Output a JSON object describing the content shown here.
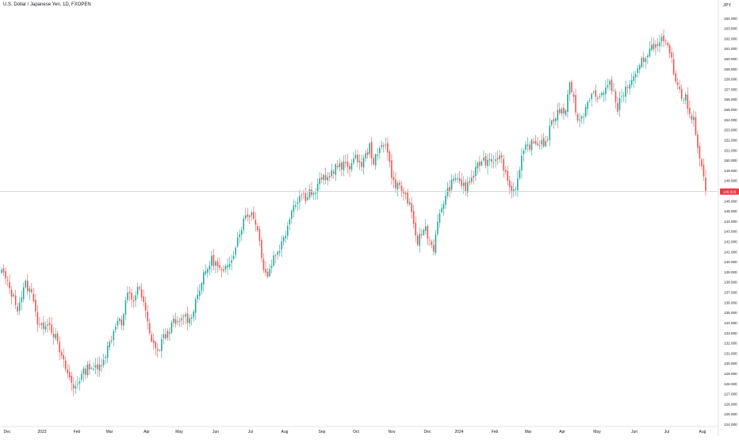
{
  "header": {
    "title": "U.S. Dollar / Japanese Yen, 1D, FXOPEN",
    "currency": "JPY"
  },
  "colors": {
    "up": "#26a69a",
    "down": "#ef5350",
    "price_line": "#cfd3dc",
    "price_label_bg": "#f23645",
    "axis_text": "#131722"
  },
  "chart_data": {
    "type": "candlestick",
    "title": "",
    "ylabel": "",
    "xlabel": "",
    "ylim": [
      124,
      165
    ],
    "grid": false,
    "y_ticks": [
      124,
      125,
      126,
      127,
      128,
      129,
      130,
      131,
      132,
      133,
      134,
      135,
      136,
      137,
      138,
      139,
      140,
      141,
      142,
      143,
      144,
      145,
      146,
      147,
      148,
      149,
      150,
      151,
      152,
      153,
      154,
      155,
      156,
      157,
      158,
      159,
      160,
      161,
      162,
      163,
      164
    ],
    "x_labels": [
      "Dec",
      "2023",
      "Feb",
      "Mar",
      "Apr",
      "May",
      "Jun",
      "Jul",
      "Aug",
      "Sep",
      "Oct",
      "Nov",
      "Dec",
      "2024",
      "Feb",
      "Mar",
      "Apr",
      "May",
      "Jun",
      "Jul",
      "Aug"
    ],
    "last_price": "146.915",
    "last_price_value": 146.915,
    "anchors": [
      [
        0,
        139.2
      ],
      [
        8,
        135.5
      ],
      [
        12,
        137.8
      ],
      [
        16,
        136.5
      ],
      [
        18,
        134.0
      ],
      [
        20,
        133.5
      ],
      [
        23,
        134.2
      ],
      [
        27,
        132.5
      ],
      [
        30,
        130.5
      ],
      [
        33,
        129.0
      ],
      [
        36,
        127.5
      ],
      [
        40,
        128.8
      ],
      [
        44,
        129.8
      ],
      [
        48,
        129.3
      ],
      [
        52,
        131.0
      ],
      [
        55,
        132.5
      ],
      [
        58,
        134.5
      ],
      [
        60,
        133.8
      ],
      [
        63,
        136.8
      ],
      [
        66,
        136.2
      ],
      [
        68,
        137.5
      ],
      [
        70,
        136.5
      ],
      [
        72,
        135.0
      ],
      [
        74,
        132.8
      ],
      [
        76,
        132.0
      ],
      [
        78,
        131.0
      ],
      [
        80,
        132.2
      ],
      [
        83,
        133.0
      ],
      [
        86,
        134.0
      ],
      [
        89,
        133.8
      ],
      [
        91,
        134.8
      ],
      [
        94,
        134.2
      ],
      [
        96,
        135.5
      ],
      [
        99,
        137.5
      ],
      [
        102,
        139.0
      ],
      [
        105,
        140.2
      ],
      [
        107,
        139.8
      ],
      [
        109,
        139.2
      ],
      [
        111,
        138.8
      ],
      [
        113,
        139.5
      ],
      [
        116,
        141.0
      ],
      [
        119,
        143.0
      ],
      [
        122,
        144.5
      ],
      [
        125,
        144.8
      ],
      [
        127,
        144.0
      ],
      [
        129,
        142.0
      ],
      [
        131,
        139.5
      ],
      [
        133,
        138.6
      ],
      [
        136,
        140.5
      ],
      [
        138,
        141.0
      ],
      [
        140,
        141.8
      ],
      [
        142,
        142.8
      ],
      [
        144,
        144.6
      ],
      [
        146,
        145.6
      ],
      [
        148,
        146.2
      ],
      [
        150,
        146.7
      ],
      [
        152,
        146.4
      ],
      [
        154,
        147.0
      ],
      [
        156,
        146.5
      ],
      [
        158,
        147.4
      ],
      [
        160,
        148.4
      ],
      [
        162,
        147.9
      ],
      [
        164,
        148.6
      ],
      [
        166,
        149.1
      ],
      [
        168,
        149.5
      ],
      [
        170,
        149.2
      ],
      [
        172,
        149.7
      ],
      [
        174,
        149.5
      ],
      [
        176,
        149.9
      ],
      [
        178,
        150.2
      ],
      [
        180,
        149.6
      ],
      [
        182,
        150.4
      ],
      [
        184,
        151.3
      ],
      [
        186,
        149.9
      ],
      [
        188,
        150.4
      ],
      [
        190,
        151.6
      ],
      [
        192,
        151.8
      ],
      [
        194,
        149.6
      ],
      [
        196,
        147.7
      ],
      [
        198,
        147.6
      ],
      [
        200,
        147.0
      ],
      [
        202,
        146.5
      ],
      [
        204,
        145.5
      ],
      [
        206,
        143.4
      ],
      [
        208,
        142.0
      ],
      [
        210,
        142.8
      ],
      [
        212,
        143.4
      ],
      [
        214,
        142.0
      ],
      [
        216,
        141.4
      ],
      [
        218,
        143.6
      ],
      [
        220,
        145.4
      ],
      [
        222,
        146.4
      ],
      [
        224,
        147.4
      ],
      [
        226,
        147.9
      ],
      [
        228,
        148.4
      ],
      [
        230,
        147.6
      ],
      [
        232,
        147.2
      ],
      [
        234,
        147.9
      ],
      [
        236,
        148.5
      ],
      [
        238,
        149.3
      ],
      [
        240,
        150.1
      ],
      [
        242,
        149.9
      ],
      [
        244,
        150.2
      ],
      [
        246,
        150.1
      ],
      [
        248,
        150.5
      ],
      [
        250,
        150.0
      ],
      [
        252,
        148.8
      ],
      [
        254,
        147.3
      ],
      [
        256,
        147.1
      ],
      [
        258,
        148.0
      ],
      [
        260,
        150.0
      ],
      [
        262,
        151.2
      ],
      [
        264,
        151.5
      ],
      [
        266,
        151.6
      ],
      [
        268,
        151.7
      ],
      [
        270,
        151.8
      ],
      [
        272,
        151.6
      ],
      [
        274,
        153.0
      ],
      [
        276,
        154.1
      ],
      [
        278,
        154.6
      ],
      [
        280,
        155.2
      ],
      [
        282,
        154.7
      ],
      [
        284,
        158.0
      ],
      [
        286,
        156.1
      ],
      [
        288,
        153.7
      ],
      [
        290,
        153.9
      ],
      [
        292,
        155.4
      ],
      [
        294,
        155.9
      ],
      [
        296,
        156.6
      ],
      [
        298,
        155.9
      ],
      [
        300,
        156.7
      ],
      [
        302,
        157.1
      ],
      [
        304,
        157.4
      ],
      [
        306,
        156.7
      ],
      [
        308,
        155.2
      ],
      [
        310,
        156.2
      ],
      [
        312,
        157.0
      ],
      [
        314,
        157.6
      ],
      [
        316,
        157.9
      ],
      [
        318,
        158.6
      ],
      [
        320,
        159.7
      ],
      [
        322,
        160.3
      ],
      [
        324,
        160.9
      ],
      [
        326,
        161.4
      ],
      [
        328,
        161.0
      ],
      [
        330,
        161.7
      ],
      [
        332,
        161.3
      ],
      [
        334,
        160.9
      ],
      [
        336,
        158.5
      ],
      [
        338,
        157.7
      ],
      [
        340,
        156.2
      ],
      [
        342,
        156.6
      ],
      [
        344,
        154.2
      ],
      [
        346,
        153.9
      ],
      [
        348,
        151.6
      ],
      [
        350,
        149.4
      ],
      [
        352,
        146.9
      ]
    ]
  }
}
